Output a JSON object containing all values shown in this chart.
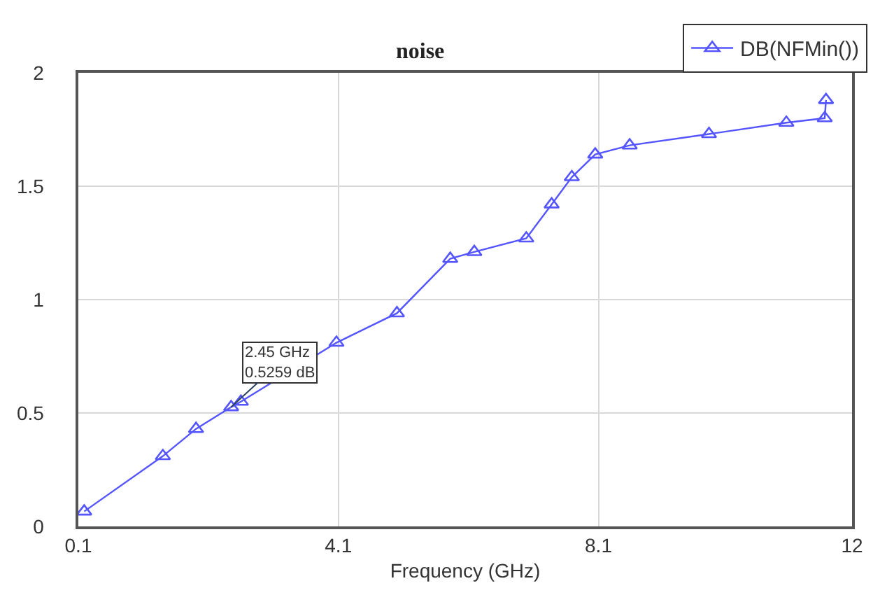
{
  "chart_data": {
    "type": "line",
    "title": "noise",
    "xlabel": "Frequency (GHz)",
    "x": [
      0.19,
      1.4,
      1.91,
      2.45,
      2.6,
      4.07,
      5.0,
      5.82,
      6.19,
      6.99,
      7.38,
      7.69,
      8.05,
      8.58,
      9.8,
      10.99,
      11.58,
      11.6
    ],
    "series": [
      {
        "name": "DB(NFMin())",
        "color": "#5555ff",
        "values": [
          0.066,
          0.31,
          0.43,
          0.5259,
          0.55,
          0.81,
          0.94,
          1.18,
          1.21,
          1.27,
          1.42,
          1.54,
          1.64,
          1.68,
          1.73,
          1.78,
          1.8,
          1.88
        ]
      }
    ],
    "annotations": [
      {
        "text": "2.45 GHz\n0.5259 dB",
        "x": 2.45,
        "y": 0.5259
      }
    ],
    "xlim": [
      0.1,
      12
    ],
    "xticks": [
      0.1,
      4.1,
      8.1,
      12
    ],
    "ylim": [
      0,
      2
    ],
    "yticks": [
      0,
      0.5,
      1,
      1.5,
      2
    ],
    "grid": true,
    "legend": "top right",
    "marker": "triangle",
    "line_style": "solid"
  }
}
